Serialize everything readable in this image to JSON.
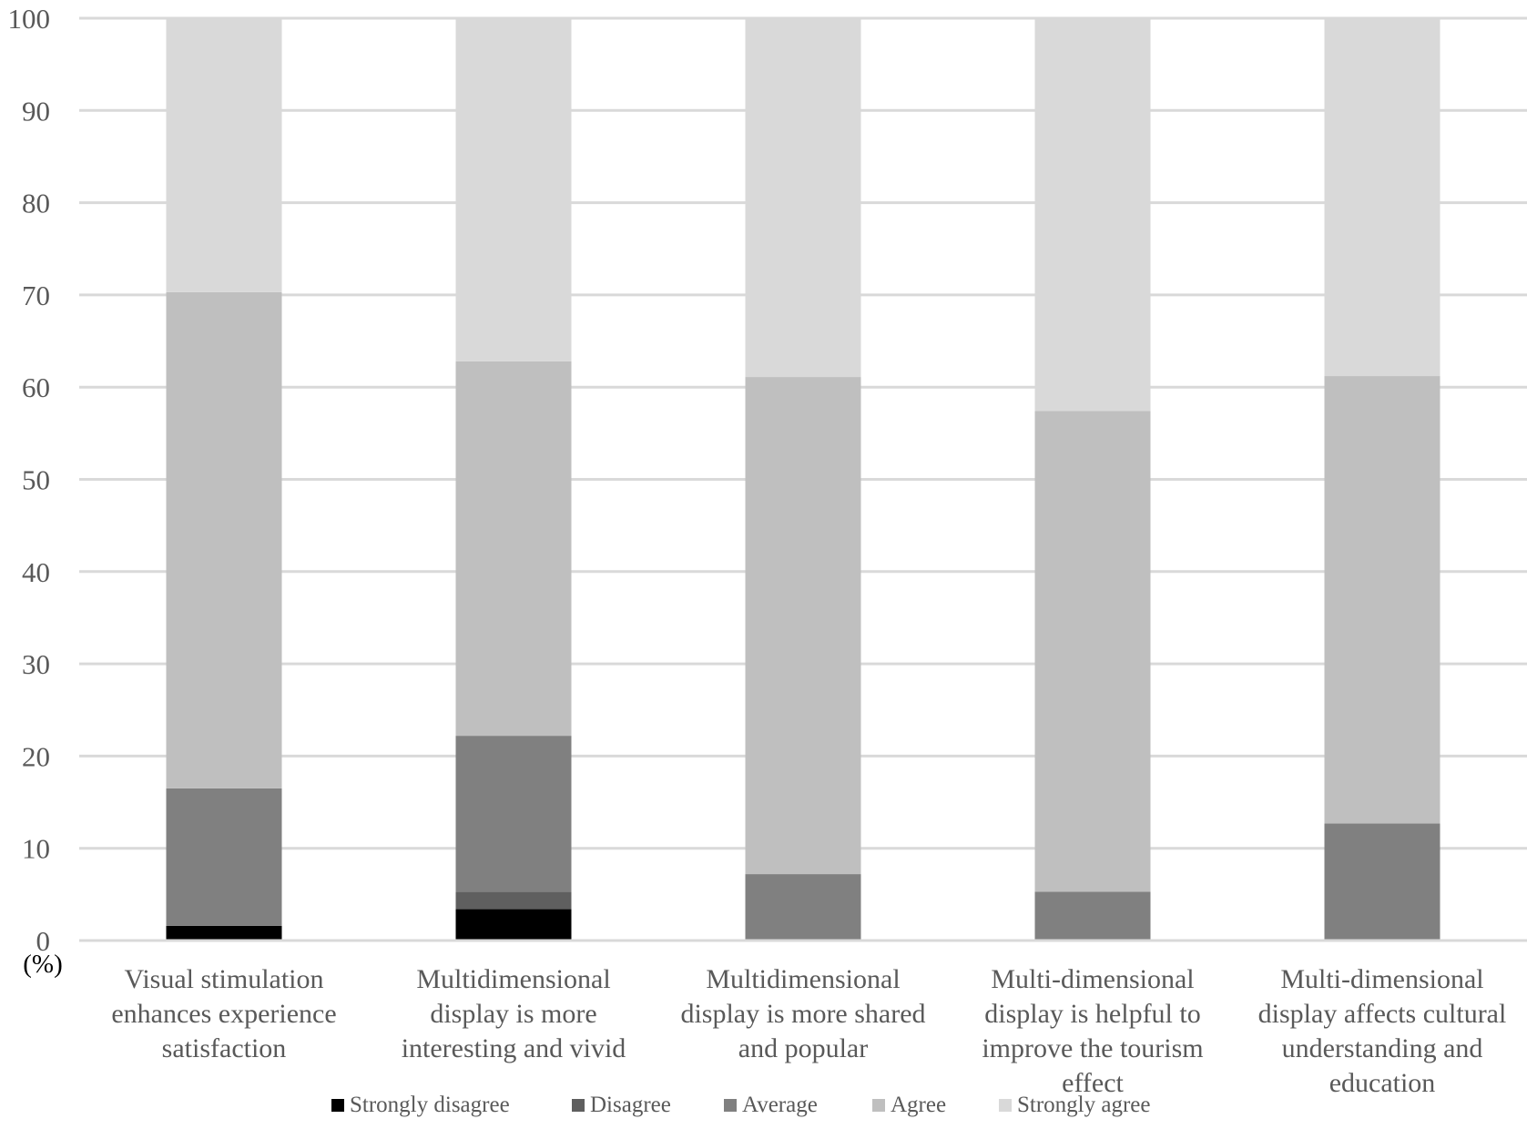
{
  "chart_data": {
    "type": "bar",
    "stacked": true,
    "title": "",
    "xlabel": "",
    "ylabel": "(%)",
    "ylim": [
      0,
      100
    ],
    "yticks": [
      0,
      10,
      20,
      30,
      40,
      50,
      60,
      70,
      80,
      90,
      100
    ],
    "grid": true,
    "legend_position": "bottom",
    "categories": [
      [
        "Visual stimulation",
        "enhances experience",
        "satisfaction"
      ],
      [
        "Multidimensional",
        "display is more",
        "interesting and vivid"
      ],
      [
        "Multidimensional",
        "display is more shared",
        "and popular"
      ],
      [
        "Multi-dimensional",
        "display is helpful to",
        "improve the tourism",
        "effect"
      ],
      [
        "Multi-dimensional",
        "display affects cultural",
        "understanding and",
        "education"
      ]
    ],
    "series": [
      {
        "name": "Strongly disagree",
        "color": "#000000",
        "values": [
          1.6,
          3.4,
          0,
          0,
          0
        ]
      },
      {
        "name": "Disagree",
        "color": "#5f5f5f",
        "values": [
          0,
          1.9,
          0,
          0,
          0
        ]
      },
      {
        "name": "Average",
        "color": "#808080",
        "values": [
          14.9,
          16.9,
          7.2,
          5.3,
          12.7
        ]
      },
      {
        "name": "Agree",
        "color": "#bfbfbf",
        "values": [
          53.8,
          40.6,
          53.9,
          52.1,
          48.5
        ]
      },
      {
        "name": "Strongly agree",
        "color": "#d9d9d9",
        "values": [
          29.7,
          37.2,
          38.9,
          42.6,
          38.8
        ]
      }
    ]
  }
}
